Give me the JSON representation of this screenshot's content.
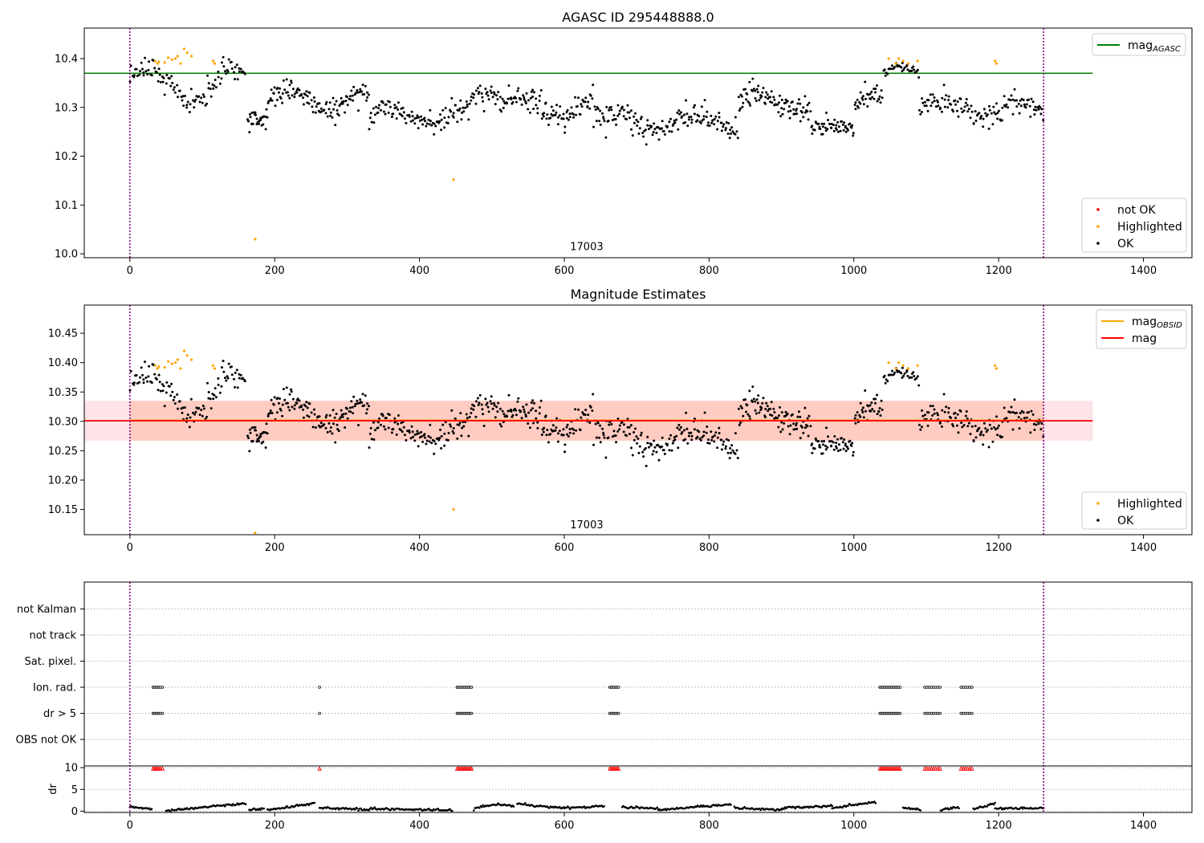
{
  "chart_data": [
    {
      "type": "scatter",
      "title": "AGASC ID 295448888.0",
      "xlim": [
        -63,
        1467
      ],
      "ylim": [
        9.992,
        10.4625
      ],
      "x_ticks": [
        0,
        200,
        400,
        600,
        800,
        1000,
        1200,
        1400
      ],
      "y_ticks": [
        10.0,
        10.1,
        10.2,
        10.3,
        10.4
      ],
      "y_tick_labels": [
        "10.0",
        "10.1",
        "10.2",
        "10.3",
        "10.4"
      ],
      "vlines": [
        0,
        1262
      ],
      "annotation": {
        "text": "17003",
        "x": 631,
        "y": 10.008
      },
      "hline": {
        "label": "mag",
        "label_sub": "AGASC",
        "value": 10.37,
        "color": "#008000",
        "x_range": [
          -63,
          1330
        ]
      },
      "legend_top": [
        {
          "label": "mag",
          "label_sub": "AGASC",
          "color": "#008000",
          "kind": "line"
        }
      ],
      "legend_bottom": [
        {
          "label": "not OK",
          "color": "#ff0000",
          "kind": "point"
        },
        {
          "label": "Highlighted",
          "color": "#ffa500",
          "kind": "point"
        },
        {
          "label": "OK",
          "color": "#000000",
          "kind": "point"
        }
      ],
      "series": [
        {
          "name": "Highlighted",
          "color": "#ffa500",
          "points": [
            [
              35,
              10.395
            ],
            [
              38,
              10.39
            ],
            [
              40,
              10.393
            ],
            [
              48,
              10.392
            ],
            [
              53,
              10.402
            ],
            [
              58,
              10.398
            ],
            [
              63,
              10.4
            ],
            [
              66,
              10.405
            ],
            [
              70,
              10.39
            ],
            [
              75,
              10.42
            ],
            [
              79,
              10.412
            ],
            [
              85,
              10.405
            ],
            [
              115,
              10.395
            ],
            [
              117,
              10.39
            ],
            [
              173,
              10.03
            ],
            [
              447,
              10.152
            ],
            [
              1048,
              10.4
            ],
            [
              1058,
              10.39
            ],
            [
              1062,
              10.4
            ],
            [
              1068,
              10.395
            ],
            [
              1075,
              10.39
            ],
            [
              1088,
              10.395
            ],
            [
              1195,
              10.395
            ],
            [
              1197,
              10.39
            ]
          ]
        }
      ],
      "ok_segments": [
        {
          "start": 0,
          "end": 160,
          "base": 10.345,
          "amp": 0.035,
          "noise": 0.022,
          "n": 110
        },
        {
          "start": 162,
          "end": 190,
          "base": 10.27,
          "amp": 0.01,
          "noise": 0.02,
          "n": 30
        },
        {
          "start": 190,
          "end": 330,
          "base": 10.315,
          "amp": 0.02,
          "noise": 0.02,
          "n": 120
        },
        {
          "start": 330,
          "end": 470,
          "base": 10.285,
          "amp": 0.012,
          "noise": 0.02,
          "n": 110
        },
        {
          "start": 470,
          "end": 510,
          "base": 10.31,
          "amp": 0.02,
          "noise": 0.025,
          "n": 30
        },
        {
          "start": 510,
          "end": 640,
          "base": 10.3,
          "amp": 0.02,
          "noise": 0.022,
          "n": 110
        },
        {
          "start": 640,
          "end": 840,
          "base": 10.27,
          "amp": 0.015,
          "noise": 0.022,
          "n": 160
        },
        {
          "start": 840,
          "end": 940,
          "base": 10.31,
          "amp": 0.02,
          "noise": 0.02,
          "n": 90
        },
        {
          "start": 940,
          "end": 1000,
          "base": 10.255,
          "amp": 0.01,
          "noise": 0.015,
          "n": 55
        },
        {
          "start": 1000,
          "end": 1040,
          "base": 10.3,
          "amp": 0.03,
          "noise": 0.02,
          "n": 35
        },
        {
          "start": 1040,
          "end": 1090,
          "base": 10.37,
          "amp": 0.01,
          "noise": 0.01,
          "n": 35
        },
        {
          "start": 1090,
          "end": 1262,
          "base": 10.295,
          "amp": 0.015,
          "noise": 0.02,
          "n": 130
        }
      ]
    },
    {
      "type": "scatter",
      "title": "Magnitude Estimates",
      "xlim": [
        -63,
        1467
      ],
      "ylim": [
        10.107,
        10.498
      ],
      "x_ticks": [
        0,
        200,
        400,
        600,
        800,
        1000,
        1200,
        1400
      ],
      "y_ticks": [
        10.15,
        10.2,
        10.25,
        10.3,
        10.35,
        10.4,
        10.45
      ],
      "y_tick_labels": [
        "10.15",
        "10.20",
        "10.25",
        "10.30",
        "10.35",
        "10.40",
        "10.45"
      ],
      "vlines": [
        0,
        1262
      ],
      "annotation": {
        "text": "17003",
        "x": 631,
        "y": 10.118
      },
      "mag_line": {
        "label": "mag",
        "value": 10.301,
        "color": "#ff0000",
        "x_range": [
          -63,
          1330
        ]
      },
      "band_outer": {
        "low": 10.267,
        "high": 10.335,
        "color": "#ffc0cb",
        "x_range": [
          -63,
          1330
        ]
      },
      "band_obsid": {
        "low": 10.267,
        "high": 10.335,
        "color": "#ffa07a",
        "x_range": [
          0,
          1262
        ]
      },
      "obsid_line": {
        "label": "mag",
        "label_sub": "OBSID",
        "value": 10.302,
        "color": "#ffa500",
        "x_range": [
          0,
          1262
        ]
      },
      "legend_top": [
        {
          "label": "mag",
          "label_sub": "OBSID",
          "color": "#ffa500",
          "kind": "line"
        },
        {
          "label": "mag",
          "color": "#ff0000",
          "kind": "line"
        }
      ],
      "legend_bottom": [
        {
          "label": "Highlighted",
          "color": "#ffa500",
          "kind": "point"
        },
        {
          "label": "OK",
          "color": "#000000",
          "kind": "point"
        }
      ],
      "series": [
        {
          "name": "Highlighted",
          "color": "#ffa500",
          "points": [
            [
              35,
              10.395
            ],
            [
              38,
              10.39
            ],
            [
              40,
              10.393
            ],
            [
              48,
              10.392
            ],
            [
              53,
              10.402
            ],
            [
              58,
              10.398
            ],
            [
              63,
              10.4
            ],
            [
              66,
              10.405
            ],
            [
              70,
              10.39
            ],
            [
              75,
              10.42
            ],
            [
              79,
              10.412
            ],
            [
              85,
              10.405
            ],
            [
              115,
              10.395
            ],
            [
              117,
              10.39
            ],
            [
              173,
              10.11
            ],
            [
              447,
              10.15
            ],
            [
              1048,
              10.4
            ],
            [
              1058,
              10.39
            ],
            [
              1062,
              10.4
            ],
            [
              1068,
              10.395
            ],
            [
              1075,
              10.39
            ],
            [
              1088,
              10.395
            ],
            [
              1195,
              10.395
            ],
            [
              1197,
              10.39
            ]
          ]
        }
      ]
    },
    {
      "type": "scatter",
      "title": "",
      "xlim": [
        -63,
        1467
      ],
      "x_ticks": [
        0,
        200,
        400,
        600,
        800,
        1000,
        1200,
        1400
      ],
      "vlines": [
        0,
        1262
      ],
      "flag_rows": [
        "not Kalman",
        "not track",
        "Sat. pixel.",
        "Ion. rad.",
        "dr > 5",
        "OBS not OK"
      ],
      "flag_points": [
        {
          "row": "Ion. rad.",
          "x": [
            32,
            34,
            36,
            38,
            40,
            42,
            45,
            262,
            452,
            454,
            456,
            458,
            460,
            462,
            464,
            466,
            468,
            470,
            472,
            663,
            665,
            667,
            669,
            671,
            673,
            675,
            1036,
            1038,
            1040,
            1042,
            1044,
            1046,
            1048,
            1050,
            1052,
            1054,
            1056,
            1058,
            1060,
            1062,
            1064,
            1098,
            1101,
            1104,
            1107,
            1110,
            1113,
            1116,
            1119,
            1148,
            1151,
            1154,
            1157,
            1160,
            1163
          ]
        },
        {
          "row": "dr > 5",
          "x": [
            32,
            34,
            36,
            38,
            40,
            42,
            45,
            262,
            452,
            454,
            456,
            458,
            460,
            462,
            464,
            466,
            468,
            470,
            472,
            663,
            665,
            667,
            669,
            671,
            673,
            675,
            1036,
            1038,
            1040,
            1042,
            1044,
            1046,
            1048,
            1050,
            1052,
            1054,
            1056,
            1058,
            1060,
            1062,
            1064,
            1098,
            1101,
            1104,
            1107,
            1110,
            1113,
            1116,
            1119,
            1148,
            1151,
            1154,
            1157,
            1160,
            1163
          ]
        }
      ],
      "dr_ylabel": "dr",
      "dr_ylim": [
        -0.3,
        10.4
      ],
      "dr_y_ticks": [
        0,
        5,
        10
      ],
      "dr_y_tick_labels": [
        "0",
        "5",
        "10"
      ],
      "dr_clipped": {
        "value": 9.8,
        "color": "#ff0000",
        "x": [
          32,
          34,
          36,
          38,
          40,
          42,
          45,
          262,
          452,
          454,
          456,
          458,
          460,
          462,
          464,
          466,
          468,
          470,
          472,
          663,
          665,
          667,
          669,
          671,
          673,
          675,
          1036,
          1038,
          1040,
          1042,
          1044,
          1046,
          1048,
          1050,
          1052,
          1054,
          1056,
          1058,
          1060,
          1062,
          1064,
          1098,
          1101,
          1104,
          1107,
          1110,
          1113,
          1116,
          1119,
          1148,
          1151,
          1154,
          1157,
          1160,
          1163
        ]
      },
      "dr_segments": [
        {
          "start": 0,
          "end": 30,
          "from": 1.0,
          "to": 0.5
        },
        {
          "start": 50,
          "end": 160,
          "from": 0.1,
          "to": 1.8
        },
        {
          "start": 165,
          "end": 185,
          "from": 0.3,
          "to": 0.6
        },
        {
          "start": 190,
          "end": 255,
          "from": 0.3,
          "to": 1.8
        },
        {
          "start": 262,
          "end": 330,
          "from": 0.8,
          "to": 0.3
        },
        {
          "start": 330,
          "end": 445,
          "from": 0.6,
          "to": 0.2
        },
        {
          "start": 475,
          "end": 510,
          "from": 0.7,
          "to": 1.7
        },
        {
          "start": 510,
          "end": 530,
          "from": 1.6,
          "to": 1.2
        },
        {
          "start": 535,
          "end": 600,
          "from": 1.7,
          "to": 0.7
        },
        {
          "start": 600,
          "end": 655,
          "from": 0.8,
          "to": 1.1
        },
        {
          "start": 680,
          "end": 730,
          "from": 1.0,
          "to": 0.6
        },
        {
          "start": 730,
          "end": 830,
          "from": 0.3,
          "to": 1.6
        },
        {
          "start": 835,
          "end": 900,
          "from": 0.7,
          "to": 0.3
        },
        {
          "start": 900,
          "end": 970,
          "from": 0.7,
          "to": 1.2
        },
        {
          "start": 970,
          "end": 1030,
          "from": 0.8,
          "to": 2.0
        },
        {
          "start": 1068,
          "end": 1092,
          "from": 0.8,
          "to": 0.3
        },
        {
          "start": 1120,
          "end": 1145,
          "from": 0.3,
          "to": 1.0
        },
        {
          "start": 1165,
          "end": 1195,
          "from": 0.5,
          "to": 1.7
        },
        {
          "start": 1195,
          "end": 1262,
          "from": 0.6,
          "to": 0.7
        }
      ]
    }
  ]
}
